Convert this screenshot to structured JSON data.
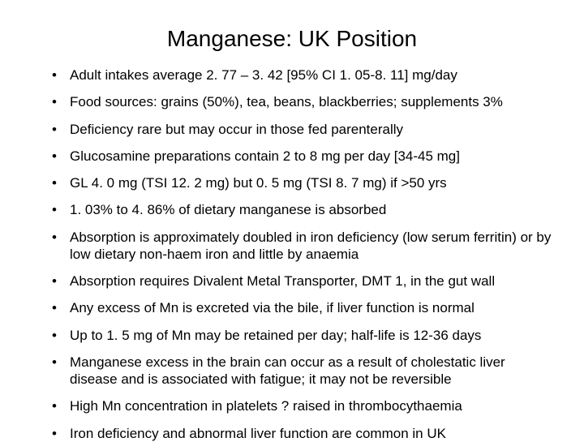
{
  "slide": {
    "title": "Manganese: UK Position",
    "title_fontsize": 28,
    "body_fontsize": 17,
    "background_color": "#ffffff",
    "text_color": "#000000",
    "bullets": [
      "Adult intakes average 2. 77 – 3. 42 [95% CI 1. 05-8. 11] mg/day",
      "Food sources: grains (50%), tea, beans, blackberries; supplements 3%",
      "Deficiency rare but may occur in those fed parenterally",
      "Glucosamine preparations contain 2 to 8 mg per day [34-45 mg]",
      "GL 4. 0 mg (TSI 12. 2 mg) but 0. 5 mg (TSI 8. 7 mg) if >50 yrs",
      "1. 03% to 4. 86% of dietary manganese is absorbed",
      "Absorption is approximately doubled in iron deficiency (low serum ferritin) or by low dietary non-haem iron and little by anaemia",
      "Absorption requires Divalent Metal Transporter, DMT 1, in the gut wall",
      "Any excess of Mn is excreted via the bile, if liver function is normal",
      "Up to 1. 5 mg of Mn may be retained per day; half-life is 12-36 days",
      "Manganese excess in the brain can occur as a result of cholestatic liver disease and is associated with fatigue; it may not be reversible",
      "High Mn concentration in platelets ? raised in thrombocythaemia",
      "Iron deficiency and abnormal liver function are common in UK"
    ]
  }
}
